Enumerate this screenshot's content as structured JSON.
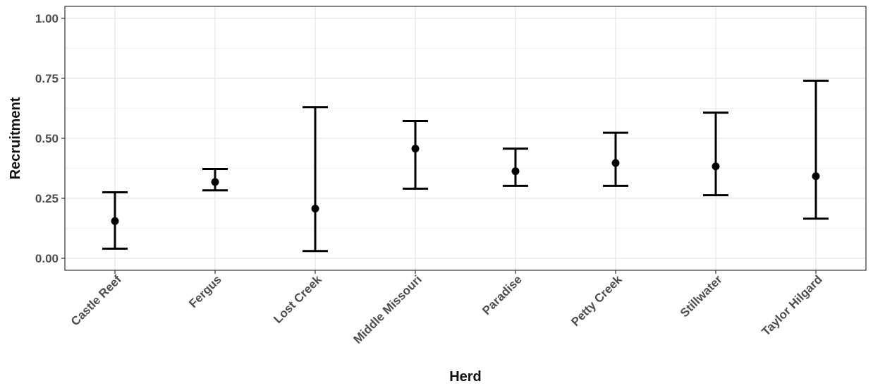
{
  "chart_data": {
    "type": "errorbar",
    "xlabel": "Herd",
    "ylabel": "Recruitment",
    "ylim": [
      -0.05,
      1.05
    ],
    "yticks": [
      "0.00",
      "0.25",
      "0.50",
      "0.75",
      "1.00"
    ],
    "grid": true,
    "categories": [
      "Castle Reef",
      "Fergus",
      "Lost Creek",
      "Middle Missouri",
      "Paradise",
      "Petty Creek",
      "Stillwater",
      "Taylor Hilgard"
    ],
    "points": [
      {
        "estimate": 0.155,
        "lower": 0.04,
        "upper": 0.275
      },
      {
        "estimate": 0.318,
        "lower": 0.283,
        "upper": 0.372
      },
      {
        "estimate": 0.207,
        "lower": 0.03,
        "upper": 0.63
      },
      {
        "estimate": 0.457,
        "lower": 0.29,
        "upper": 0.572
      },
      {
        "estimate": 0.363,
        "lower": 0.302,
        "upper": 0.457
      },
      {
        "estimate": 0.397,
        "lower": 0.302,
        "upper": 0.523
      },
      {
        "estimate": 0.383,
        "lower": 0.263,
        "upper": 0.607
      },
      {
        "estimate": 0.342,
        "lower": 0.165,
        "upper": 0.74
      }
    ],
    "colors": {
      "marker": "#000000",
      "panel_border": "#333333",
      "grid_major": "#e6e6e6",
      "grid_minor": "#f2f2f2",
      "tick_text": "#4d4d4d",
      "title_text": "#111111"
    }
  }
}
